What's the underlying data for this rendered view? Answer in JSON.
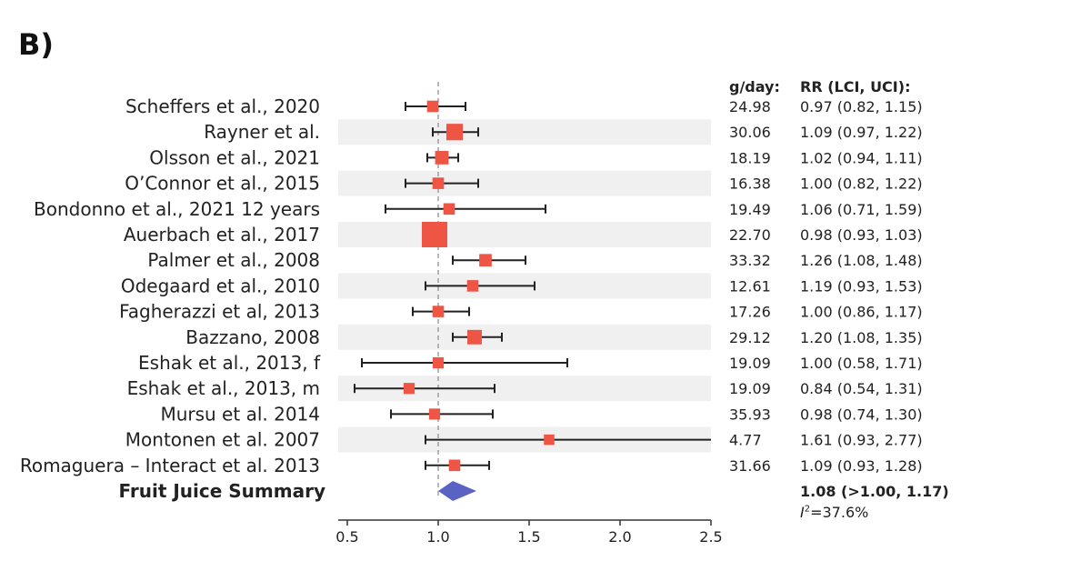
{
  "panel_label": "B)",
  "chart_data": {
    "type": "forest",
    "columns": {
      "dose": "g/day:",
      "rr": "RR (LCI, UCI):"
    },
    "xlim": [
      0.45,
      2.5
    ],
    "xticks": [
      0.5,
      1.0,
      1.5,
      2.0,
      2.5
    ],
    "xtick_labels": [
      "0.5",
      "1.0",
      "1.5",
      "2.0",
      "2.5"
    ],
    "reference_line": 1.0,
    "studies": [
      {
        "label": "Scheffers et al., 2020",
        "rr": 0.97,
        "lci": 0.82,
        "uci": 1.15,
        "dose": "24.98",
        "rr_text": "0.97 (0.82, 1.15)",
        "weight": 0.3
      },
      {
        "label": "Rayner et al.",
        "rr": 1.09,
        "lci": 0.97,
        "uci": 1.22,
        "dose": "30.06",
        "rr_text": "1.09 (0.97, 1.22)",
        "weight": 0.55
      },
      {
        "label": "Olsson et al., 2021",
        "rr": 1.02,
        "lci": 0.94,
        "uci": 1.11,
        "dose": "18.19",
        "rr_text": "1.02 (0.94, 1.11)",
        "weight": 0.4
      },
      {
        "label": "O’Connor et al., 2015",
        "rr": 1.0,
        "lci": 0.82,
        "uci": 1.22,
        "dose": "16.38",
        "rr_text": "1.00 (0.82, 1.22)",
        "weight": 0.3
      },
      {
        "label": "Bondonno et al., 2021 12 years",
        "rr": 1.06,
        "lci": 0.71,
        "uci": 1.59,
        "dose": "19.49",
        "rr_text": "1.06 (0.71, 1.59)",
        "weight": 0.3
      },
      {
        "label": "Auerbach et al., 2017",
        "rr": 0.98,
        "lci": 0.93,
        "uci": 1.03,
        "dose": "22.70",
        "rr_text": "0.98 (0.93, 1.03)",
        "weight": 1.0
      },
      {
        "label": "Palmer et al., 2008",
        "rr": 1.26,
        "lci": 1.08,
        "uci": 1.48,
        "dose": "33.32",
        "rr_text": "1.26 (1.08, 1.48)",
        "weight": 0.35
      },
      {
        "label": "Odegaard et al., 2010",
        "rr": 1.19,
        "lci": 0.93,
        "uci": 1.53,
        "dose": "12.61",
        "rr_text": "1.19 (0.93, 1.53)",
        "weight": 0.3
      },
      {
        "label": "Fagherazzi et al, 2013",
        "rr": 1.0,
        "lci": 0.86,
        "uci": 1.17,
        "dose": "17.26",
        "rr_text": "1.00 (0.86, 1.17)",
        "weight": 0.3
      },
      {
        "label": "Bazzano, 2008",
        "rr": 1.2,
        "lci": 1.08,
        "uci": 1.35,
        "dose": "29.12",
        "rr_text": "1.20 (1.08, 1.35)",
        "weight": 0.45
      },
      {
        "label": "Eshak et al., 2013, f",
        "rr": 1.0,
        "lci": 0.58,
        "uci": 1.71,
        "dose": "19.09",
        "rr_text": "1.00 (0.58, 1.71)",
        "weight": 0.28
      },
      {
        "label": "Eshak et al., 2013, m",
        "rr": 0.84,
        "lci": 0.54,
        "uci": 1.31,
        "dose": "19.09",
        "rr_text": "0.84 (0.54, 1.31)",
        "weight": 0.28
      },
      {
        "label": "Mursu et al. 2014",
        "rr": 0.98,
        "lci": 0.74,
        "uci": 1.3,
        "dose": "35.93",
        "rr_text": "0.98 (0.74, 1.30)",
        "weight": 0.28
      },
      {
        "label": "Montonen et al. 2007",
        "rr": 1.61,
        "lci": 0.93,
        "uci": 2.77,
        "dose": "4.77",
        "rr_text": "1.61 (0.93, 2.77)",
        "weight": 0.25
      },
      {
        "label": "Romaguera – Interact et al. 2013",
        "rr": 1.09,
        "lci": 0.93,
        "uci": 1.28,
        "dose": "31.66",
        "rr_text": "1.09 (0.93, 1.28)",
        "weight": 0.3
      }
    ],
    "summary": {
      "label": "Fruit Juice Summary",
      "rr": 1.08,
      "lci": 1.0,
      "uci": 1.17,
      "rr_text": "1.08 (>1.00, 1.17)"
    },
    "heterogeneity": {
      "symbol": "I",
      "power": "2",
      "value": "=37.6%"
    },
    "colors": {
      "marker": "#ee5545",
      "summary": "#5a62c4",
      "stripe": "#f0f0f0",
      "ref_line": "#888888",
      "axis": "#333333"
    }
  }
}
